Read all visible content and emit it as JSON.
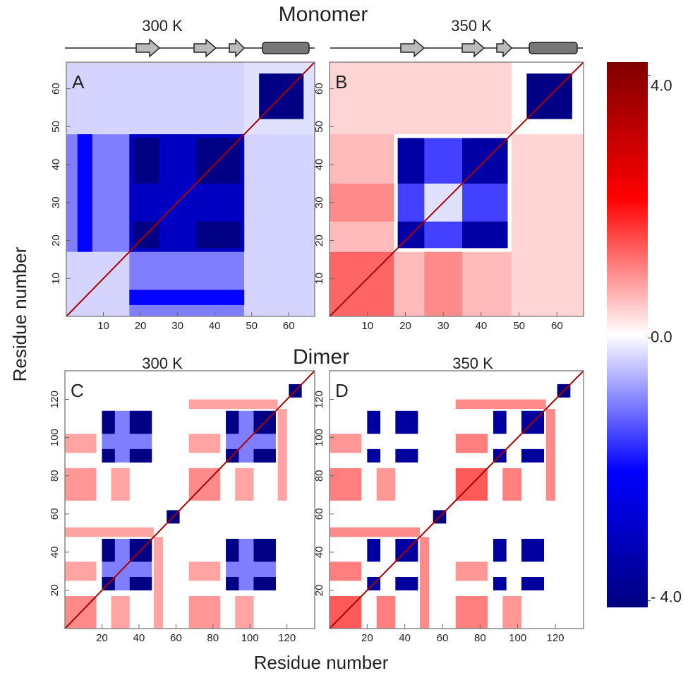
{
  "figure": {
    "monomer_title": "Monomer",
    "dimer_title": "Dimer",
    "x_label": "Residue number",
    "y_label": "Residue number"
  },
  "colorbar": {
    "lim": [
      -4.1,
      4.2
    ],
    "colors": [
      "#00007f",
      "#0000ff",
      "#ffffff",
      "#ff0000",
      "#7f0000"
    ],
    "ticks": [
      {
        "value": 4.0,
        "label": "4.0"
      },
      {
        "value": 0.0,
        "label": "0.0"
      },
      {
        "value": -4.0,
        "label": "- 4.0"
      }
    ]
  },
  "chart_data": [
    {
      "type": "heatmap",
      "label": "A",
      "subtitle": "300 K",
      "xlim": [
        0,
        67
      ],
      "ylim": [
        0,
        67
      ],
      "xticks": [
        10,
        20,
        30,
        40,
        50,
        60
      ],
      "yticks": [
        10,
        20,
        30,
        40,
        50,
        60
      ],
      "symmetric": true,
      "diagonal": 3.5,
      "blocks": [
        {
          "x": [
            0,
            48
          ],
          "y": [
            0,
            48
          ],
          "value": -1.0
        },
        {
          "x": [
            0,
            48
          ],
          "y": [
            48,
            67
          ],
          "value": -0.3
        },
        {
          "x": [
            48,
            67
          ],
          "y": [
            48,
            67
          ],
          "value": -0.2
        },
        {
          "x": [
            0,
            17
          ],
          "y": [
            0,
            17
          ],
          "value": -0.3
        },
        {
          "x": [
            17,
            48
          ],
          "y": [
            17,
            48
          ],
          "value": -3.0
        },
        {
          "x": [
            18,
            25
          ],
          "y": [
            18,
            25
          ],
          "value": -4.0
        },
        {
          "x": [
            35,
            47
          ],
          "y": [
            35,
            47
          ],
          "value": -4.0
        },
        {
          "x": [
            18,
            25
          ],
          "y": [
            35,
            47
          ],
          "value": -4.0
        },
        {
          "x": [
            17,
            48
          ],
          "y": [
            3,
            7
          ],
          "value": -2.0
        },
        {
          "x": [
            52,
            64
          ],
          "y": [
            52,
            64
          ],
          "value": -4.0
        }
      ]
    },
    {
      "type": "heatmap",
      "label": "B",
      "subtitle": "350 K",
      "xlim": [
        0,
        67
      ],
      "ylim": [
        0,
        67
      ],
      "xticks": [
        10,
        20,
        30,
        40,
        50,
        60
      ],
      "yticks": [
        10,
        20,
        30,
        40,
        50,
        60
      ],
      "symmetric": true,
      "diagonal": 3.5,
      "blocks": [
        {
          "x": [
            0,
            48
          ],
          "y": [
            48,
            67
          ],
          "value": 0.4
        },
        {
          "x": [
            0,
            17
          ],
          "y": [
            0,
            17
          ],
          "value": 1.3
        },
        {
          "x": [
            17,
            48
          ],
          "y": [
            0,
            17
          ],
          "value": 0.6
        },
        {
          "x": [
            25,
            35
          ],
          "y": [
            0,
            17
          ],
          "value": 1.0
        },
        {
          "x": [
            18,
            47
          ],
          "y": [
            18,
            47
          ],
          "value": -1.5
        },
        {
          "x": [
            25,
            35
          ],
          "y": [
            25,
            35
          ],
          "value": -0.2
        },
        {
          "x": [
            18,
            25
          ],
          "y": [
            18,
            25
          ],
          "value": -3.5
        },
        {
          "x": [
            35,
            47
          ],
          "y": [
            35,
            47
          ],
          "value": -3.5
        },
        {
          "x": [
            18,
            25
          ],
          "y": [
            35,
            47
          ],
          "value": -3.5
        },
        {
          "x": [
            52,
            64
          ],
          "y": [
            52,
            64
          ],
          "value": -4.0
        }
      ]
    },
    {
      "type": "heatmap",
      "label": "C",
      "subtitle": "300 K",
      "xlim": [
        0,
        135
      ],
      "ylim": [
        0,
        135
      ],
      "xticks": [
        20,
        40,
        60,
        80,
        100,
        120
      ],
      "yticks": [
        20,
        40,
        60,
        80,
        100,
        120
      ],
      "symmetric": true,
      "diagonal": 3.5,
      "blocks": [
        {
          "x": [
            0,
            17
          ],
          "y": [
            0,
            17
          ],
          "value": 1.0
        },
        {
          "x": [
            67,
            84
          ],
          "y": [
            67,
            84
          ],
          "value": 1.0
        },
        {
          "x": [
            0,
            17
          ],
          "y": [
            67,
            84
          ],
          "value": 0.9
        },
        {
          "x": [
            25,
            35
          ],
          "y": [
            0,
            17
          ],
          "value": 0.8
        },
        {
          "x": [
            92,
            102
          ],
          "y": [
            67,
            84
          ],
          "value": 0.8
        },
        {
          "x": [
            25,
            35
          ],
          "y": [
            67,
            84
          ],
          "value": 0.8
        },
        {
          "x": [
            92,
            102
          ],
          "y": [
            0,
            17
          ],
          "value": 0.8
        },
        {
          "x": [
            0,
            48
          ],
          "y": [
            48,
            53
          ],
          "value": 0.8
        },
        {
          "x": [
            67,
            115
          ],
          "y": [
            115,
            120
          ],
          "value": 0.8
        },
        {
          "x": [
            20,
            47
          ],
          "y": [
            20,
            47
          ],
          "value": -1.0
        },
        {
          "x": [
            87,
            114
          ],
          "y": [
            87,
            114
          ],
          "value": -1.0
        },
        {
          "x": [
            20,
            47
          ],
          "y": [
            87,
            114
          ],
          "value": -1.0
        },
        {
          "x": [
            20,
            27
          ],
          "y": [
            20,
            27
          ],
          "value": -4.0
        },
        {
          "x": [
            35,
            47
          ],
          "y": [
            35,
            47
          ],
          "value": -4.0
        },
        {
          "x": [
            20,
            27
          ],
          "y": [
            35,
            47
          ],
          "value": -4.0
        },
        {
          "x": [
            87,
            94
          ],
          "y": [
            87,
            94
          ],
          "value": -4.0
        },
        {
          "x": [
            102,
            114
          ],
          "y": [
            102,
            114
          ],
          "value": -4.0
        },
        {
          "x": [
            87,
            94
          ],
          "y": [
            102,
            114
          ],
          "value": -4.0
        },
        {
          "x": [
            20,
            27
          ],
          "y": [
            87,
            94
          ],
          "value": -4.0
        },
        {
          "x": [
            35,
            47
          ],
          "y": [
            102,
            114
          ],
          "value": -4.0
        },
        {
          "x": [
            20,
            27
          ],
          "y": [
            102,
            114
          ],
          "value": -4.0
        },
        {
          "x": [
            35,
            47
          ],
          "y": [
            87,
            94
          ],
          "value": -4.0
        },
        {
          "x": [
            55,
            62
          ],
          "y": [
            55,
            62
          ],
          "value": -4.1
        },
        {
          "x": [
            121,
            128
          ],
          "y": [
            121,
            128
          ],
          "value": -4.1
        }
      ]
    },
    {
      "type": "heatmap",
      "label": "D",
      "subtitle": "350 K",
      "xlim": [
        0,
        135
      ],
      "ylim": [
        0,
        135
      ],
      "xticks": [
        20,
        40,
        60,
        80,
        100,
        120
      ],
      "yticks": [
        20,
        40,
        60,
        80,
        100,
        120
      ],
      "symmetric": true,
      "diagonal": 3.5,
      "blocks": [
        {
          "x": [
            0,
            17
          ],
          "y": [
            0,
            17
          ],
          "value": 1.4
        },
        {
          "x": [
            67,
            84
          ],
          "y": [
            67,
            84
          ],
          "value": 1.4
        },
        {
          "x": [
            0,
            17
          ],
          "y": [
            67,
            84
          ],
          "value": 1.1
        },
        {
          "x": [
            25,
            35
          ],
          "y": [
            0,
            17
          ],
          "value": 1.1
        },
        {
          "x": [
            92,
            102
          ],
          "y": [
            67,
            84
          ],
          "value": 1.1
        },
        {
          "x": [
            25,
            35
          ],
          "y": [
            67,
            84
          ],
          "value": 0.9
        },
        {
          "x": [
            92,
            102
          ],
          "y": [
            0,
            17
          ],
          "value": 0.9
        },
        {
          "x": [
            0,
            48
          ],
          "y": [
            48,
            53
          ],
          "value": 1.0
        },
        {
          "x": [
            67,
            115
          ],
          "y": [
            115,
            120
          ],
          "value": 1.0
        },
        {
          "x": [
            20,
            27
          ],
          "y": [
            20,
            27
          ],
          "value": -3.6
        },
        {
          "x": [
            35,
            47
          ],
          "y": [
            35,
            47
          ],
          "value": -3.6
        },
        {
          "x": [
            20,
            27
          ],
          "y": [
            35,
            47
          ],
          "value": -3.6
        },
        {
          "x": [
            87,
            94
          ],
          "y": [
            87,
            94
          ],
          "value": -3.6
        },
        {
          "x": [
            102,
            114
          ],
          "y": [
            102,
            114
          ],
          "value": -3.6
        },
        {
          "x": [
            87,
            94
          ],
          "y": [
            102,
            114
          ],
          "value": -3.6
        },
        {
          "x": [
            20,
            27
          ],
          "y": [
            87,
            94
          ],
          "value": -3.6
        },
        {
          "x": [
            35,
            47
          ],
          "y": [
            102,
            114
          ],
          "value": -3.6
        },
        {
          "x": [
            20,
            27
          ],
          "y": [
            102,
            114
          ],
          "value": -3.6
        },
        {
          "x": [
            35,
            47
          ],
          "y": [
            87,
            94
          ],
          "value": -3.6
        },
        {
          "x": [
            55,
            62
          ],
          "y": [
            55,
            62
          ],
          "value": -4.1
        },
        {
          "x": [
            121,
            128
          ],
          "y": [
            121,
            128
          ],
          "value": -4.1
        }
      ]
    }
  ]
}
